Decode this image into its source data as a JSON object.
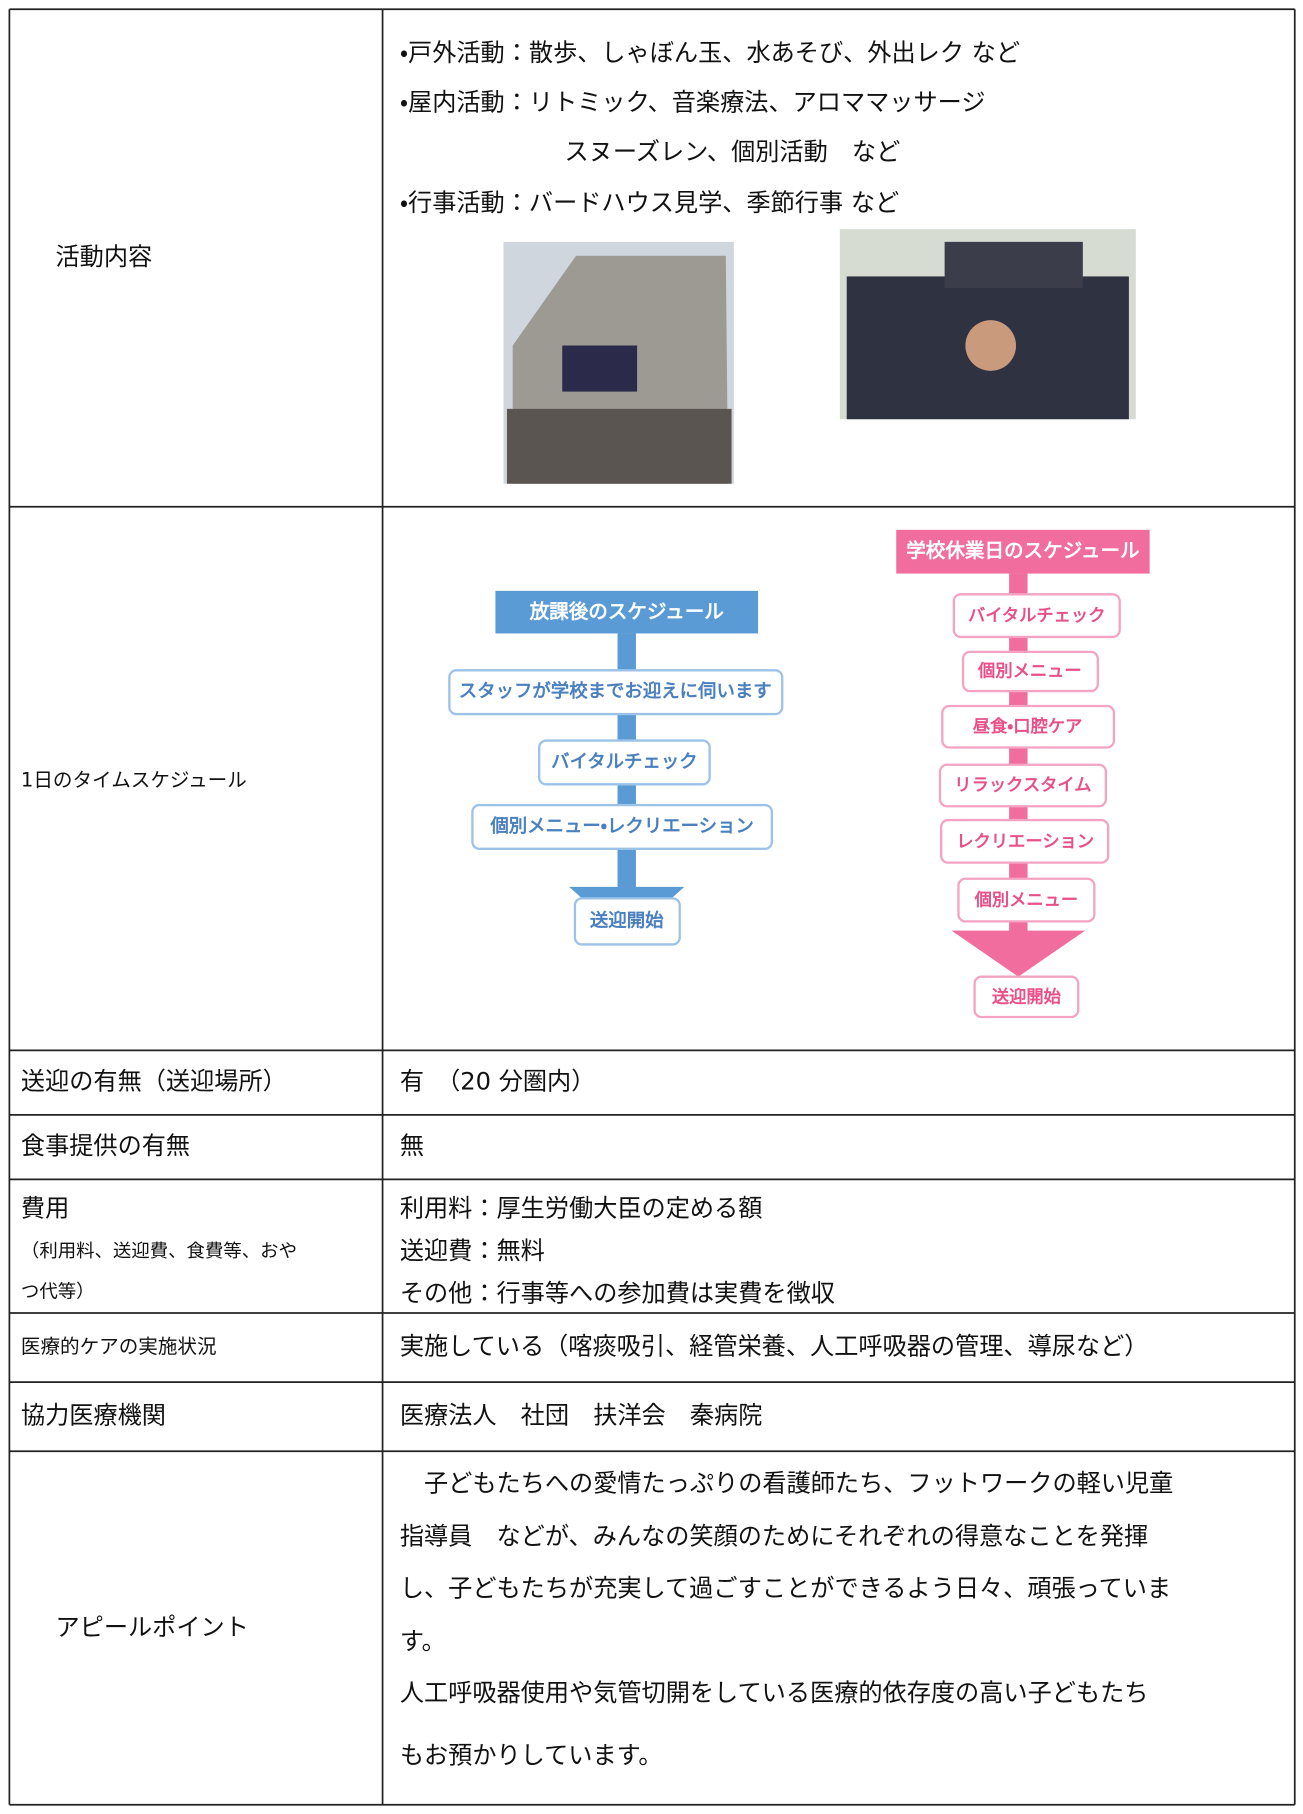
{
  "activities": {
    "label": "活動内容",
    "lines": [
      "・戸外活動：散歩、しゃぼん玉、水あそび、外出レク など",
      "・屋内活動：リトミック、音楽療法、アロママッサージ",
      "スヌーズレン、個別活動　など",
      "・行事活動：バードハウス見学、季節行事 など"
    ]
  },
  "schedule": {
    "label": "1日のタイムスケジュール",
    "after_school": {
      "title": "放課後のスケジュール",
      "steps": [
        "スタッフが学校までお迎えに伺います",
        "バイタルチェック",
        "個別メニュー・レクリエーション"
      ],
      "end": "送迎開始"
    },
    "holiday": {
      "title": "学校休業日のスケジュール",
      "steps": [
        "バイタルチェック",
        "個別メニュー",
        "昼食・口腔ケア",
        "リラックスタイム",
        "レクリエーション",
        "個別メニュー"
      ],
      "end": "送迎開始"
    }
  },
  "transport": {
    "label": "送迎の有無（送迎場所）",
    "value": "有　（20 分圏内）"
  },
  "meals": {
    "label": "食事提供の有無",
    "value": "無"
  },
  "fees": {
    "label": [
      "費用",
      "（利用料、送迎費、食費等、おや",
      "つ代等）"
    ],
    "lines": [
      "利用料：厚生労働大臣の定める額",
      "送迎費：無料",
      "その他：行事等への参加費は実費を徴収"
    ]
  },
  "medical_care": {
    "label": "医療的ケアの実施状況",
    "value": "実施している（喀痰吸引、経管栄養、人工呼吸器の管理、導尿など）"
  },
  "hospital": {
    "label": "協力医療機関",
    "value": "医療法人　社団　扶洋会　秦病院"
  },
  "appeal": {
    "label": "アピールポイント",
    "lines": [
      "　子どもたちへの愛情たっぷりの看護師たち、フットワークの軽い児童",
      "指導員　などが、みんなの笑顔のためにそれぞれの得意なことを発揮",
      "し、子どもたちが充実して過ごすことができるよう日々、頑張っていま",
      "す。",
      "人工呼吸器使用や気管切開をしている医療的依存度の高い子どもたち",
      "もお預かりしています。"
    ]
  }
}
